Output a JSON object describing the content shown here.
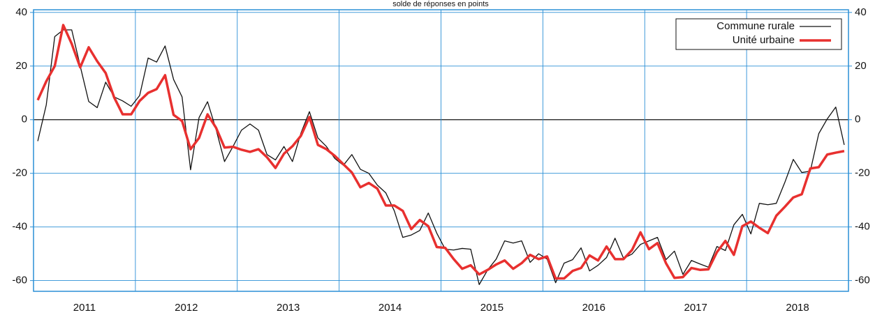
{
  "chart_data": {
    "type": "line",
    "title": "solde de réponses en points",
    "categories": [
      "2011",
      null,
      null,
      null,
      null,
      null,
      null,
      null,
      null,
      null,
      null,
      null,
      "2012",
      null,
      null,
      null,
      null,
      null,
      null,
      null,
      null,
      null,
      null,
      null,
      "2013",
      null,
      null,
      null,
      null,
      null,
      null,
      null,
      null,
      null,
      null,
      null,
      "2014",
      null,
      null,
      null,
      null,
      null,
      null,
      null,
      null,
      null,
      null,
      null,
      "2015",
      null,
      null,
      null,
      null,
      null,
      null,
      null,
      null,
      null,
      null,
      null,
      "2016",
      null,
      null,
      null,
      null,
      null,
      null,
      null,
      null,
      null,
      null,
      null,
      "2017",
      null,
      null,
      null,
      null,
      null,
      null,
      null,
      null,
      null,
      null,
      null,
      "2018",
      null,
      null,
      null,
      null,
      null,
      null,
      null,
      null,
      null,
      null,
      null
    ],
    "series": [
      {
        "name": "Commune rurale",
        "color": "#111111",
        "width": 1.3,
        "values": [
          -8,
          5.5,
          31,
          33.5,
          33.5,
          20,
          6.8,
          4.5,
          14,
          8.5,
          7,
          5,
          9,
          23,
          21.5,
          27.5,
          15,
          8.5,
          -18.7,
          0.8,
          6.7,
          -3.6,
          -15.6,
          -10,
          -3.9,
          -1.6,
          -3.9,
          -13,
          -15,
          -10,
          -15.6,
          -5,
          3,
          -6.8,
          -10,
          -14.5,
          -17,
          -13,
          -18.5,
          -20,
          -24.4,
          -27.3,
          -34,
          -43.9,
          -43,
          -41.3,
          -34.8,
          -42.3,
          -48.3,
          -48.6,
          -48,
          -48.3,
          -61.5,
          -56,
          -52,
          -45.2,
          -46,
          -45.2,
          -53.2,
          -50,
          -52,
          -60.8,
          -53.5,
          -52.2,
          -47.8,
          -56.4,
          -54.3,
          -51.4,
          -44.2,
          -51.7,
          -50.1,
          -46.5,
          -45.2,
          -43.9,
          -52.2,
          -49,
          -57.7,
          -52.5,
          -53.8,
          -55,
          -47.3,
          -48.8,
          -39.2,
          -35.3,
          -42.6,
          -31.2,
          -31.7,
          -31.2,
          -23.4,
          -14.8,
          -19.7,
          -19.2,
          -5.2,
          0.3,
          4.7,
          -9.4
        ]
      },
      {
        "name": "Unité urbaine",
        "color": "#e8302f",
        "width": 3.5,
        "values": [
          7.3,
          14.3,
          20,
          35.3,
          28.3,
          19.5,
          27,
          21.8,
          17.4,
          8.3,
          2,
          2,
          7,
          10,
          11.4,
          16.6,
          1.8,
          -0.5,
          -11,
          -6.8,
          2,
          -3,
          -10.4,
          -10.1,
          -11.2,
          -12,
          -11,
          -14,
          -18,
          -12.7,
          -9.9,
          -6,
          1,
          -9.4,
          -11,
          -13.5,
          -16.6,
          -19.7,
          -25.2,
          -23.6,
          -25.7,
          -32,
          -32,
          -34,
          -40.8,
          -37.4,
          -39.7,
          -47.5,
          -47.8,
          -52,
          -55.6,
          -54.3,
          -57.7,
          -56,
          -54,
          -52.5,
          -55.6,
          -53.5,
          -50.4,
          -52,
          -51,
          -59.2,
          -59.2,
          -56.4,
          -55.3,
          -50.6,
          -52.5,
          -47.3,
          -52,
          -52,
          -48.6,
          -42,
          -48.3,
          -46,
          -53.5,
          -59,
          -58.7,
          -55.3,
          -56,
          -55.8,
          -49.4,
          -45.2,
          -50.4,
          -39.7,
          -38,
          -40.3,
          -42.3,
          -35.8,
          -32.5,
          -29,
          -27.8,
          -18.2,
          -17.7,
          -13,
          -12.3,
          -11.7
        ]
      }
    ],
    "ylim": [
      -64,
      41
    ],
    "yticks": [
      -60,
      -40,
      -20,
      0,
      20,
      40
    ],
    "grid": true,
    "legend": "top-right"
  }
}
